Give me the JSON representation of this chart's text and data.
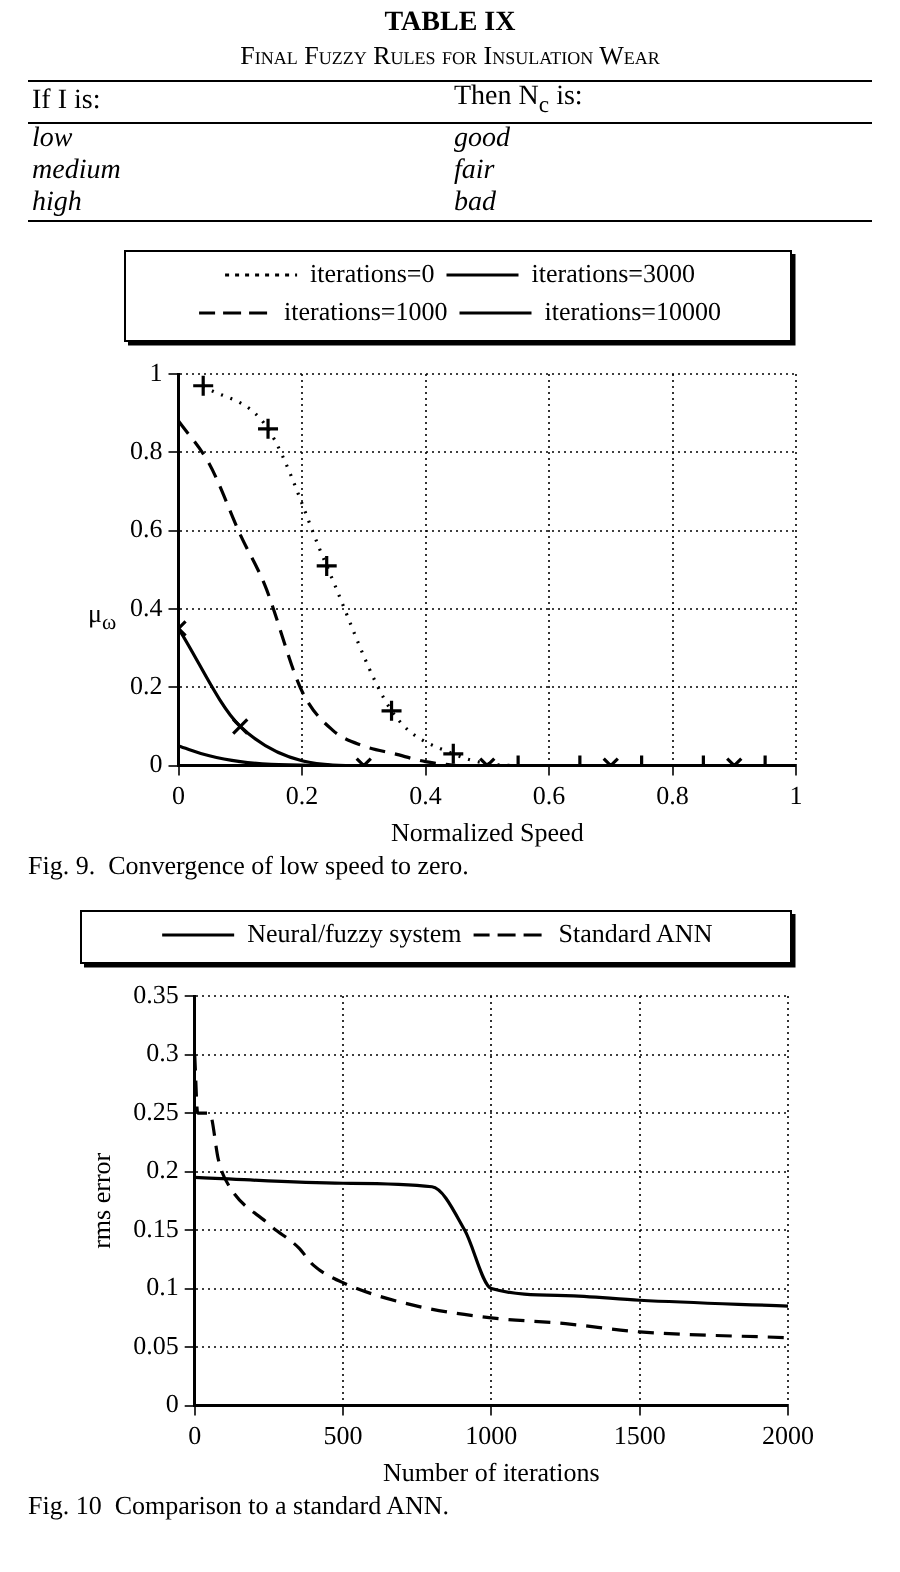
{
  "chart_data": [
    {
      "type": "other",
      "title": "TABLE IX",
      "subtitle": "Final Fuzzy Rules for Insulation Wear",
      "annotations": [
        "If I is:",
        "Then N$_{c}$ is:",
        "low",
        "good",
        "medium",
        "fair",
        "high",
        "bad"
      ]
    },
    {
      "type": "line",
      "xlabel": "Normalized Speed",
      "ylabel": "μ$_{ω}$",
      "xlim": [
        0,
        1
      ],
      "ylim": [
        0,
        1
      ],
      "xticks": [
        0,
        0.2,
        0.4,
        0.6,
        0.8,
        1
      ],
      "yticks": [
        0,
        0.2,
        0.4,
        0.6,
        0.8,
        1
      ],
      "grid": true,
      "legend": "top",
      "annotations": [
        "Fig. 9.  Convergence of low speed to zero."
      ],
      "series": [
        {
          "name": "iterations=0",
          "color": "#000000",
          "line_style": "dotted",
          "marker": "cross",
          "x": [
            0.04,
            0.145,
            0.24,
            0.345,
            0.445,
            0.55,
            0.65,
            0.75,
            0.85,
            0.95
          ],
          "values": [
            0.97,
            0.86,
            0.51,
            0.14,
            0.03,
            0,
            0,
            0,
            0,
            0
          ]
        },
        {
          "name": "iterations=3000",
          "color": "#000000",
          "line_style": "solid",
          "marker": "x",
          "x": [
            0,
            0.1,
            0.3,
            0.5,
            0.7,
            0.9
          ],
          "values": [
            0.35,
            0.1,
            0,
            0,
            0,
            0
          ]
        },
        {
          "name": "iterations=1000",
          "color": "#000000",
          "line_style": "dashed",
          "marker": "none",
          "x": [
            0,
            0.05,
            0.1,
            0.14,
            0.2,
            0.25,
            0.3,
            0.35,
            0.4,
            0.45
          ],
          "values": [
            0.88,
            0.77,
            0.59,
            0.46,
            0.19,
            0.09,
            0.05,
            0.03,
            0.01,
            0
          ]
        },
        {
          "name": "iterations=10000",
          "color": "#000000",
          "line_style": "solid",
          "marker": "none",
          "x": [
            0,
            0.05,
            0.1,
            0.15,
            0.25
          ],
          "values": [
            0.05,
            0.025,
            0.01,
            0.003,
            0
          ]
        }
      ]
    },
    {
      "type": "line",
      "xlabel": "Number of iterations",
      "ylabel": "rms error",
      "xlim": [
        0,
        2000
      ],
      "ylim": [
        0,
        0.35
      ],
      "xticks": [
        0,
        500,
        1000,
        1500,
        2000
      ],
      "yticks": [
        0,
        0.05,
        0.1,
        0.15,
        0.2,
        0.25,
        0.3,
        0.35
      ],
      "grid": true,
      "legend": "top",
      "marker": "none",
      "annotations": [
        "Fig. 10  Comparison to a standard ANN."
      ],
      "series": [
        {
          "name": "Neural/fuzzy system",
          "color": "#000000",
          "line_style": "solid",
          "x": [
            0,
            500,
            800,
            910,
            1000,
            1250,
            1500,
            2000
          ],
          "values": [
            0.195,
            0.19,
            0.187,
            0.15,
            0.1,
            0.094,
            0.09,
            0.085
          ]
        },
        {
          "name": "Standard ANN",
          "color": "#000000",
          "line_style": "dashed",
          "x": [
            0,
            10,
            50,
            80,
            100,
            250,
            350,
            400,
            500,
            750,
            1000,
            1250,
            1500,
            2000
          ],
          "values": [
            0.3,
            0.25,
            0.25,
            0.21,
            0.195,
            0.155,
            0.135,
            0.12,
            0.105,
            0.085,
            0.075,
            0.07,
            0.063,
            0.058
          ]
        }
      ]
    }
  ]
}
